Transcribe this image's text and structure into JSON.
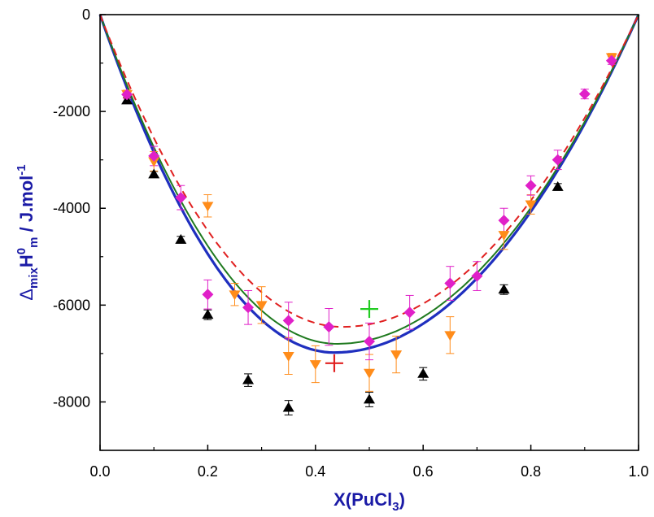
{
  "chart_data": {
    "type": "scatter",
    "xlabel": {
      "main": "X(PuCl",
      "sub": "3",
      "close": ")"
    },
    "ylabel": {
      "delta": "Δ",
      "mix": "mix",
      "h": "H",
      "sup0": "0",
      "subm": "m",
      "unit": " / J.mol",
      "exp": "-1"
    },
    "xlim": [
      0,
      1.0
    ],
    "ylim": [
      -9000,
      0
    ],
    "x_ticks": [
      {
        "value": 0.0,
        "label": "0.0"
      },
      {
        "value": 0.2,
        "label": "0.2"
      },
      {
        "value": 0.4,
        "label": "0.4"
      },
      {
        "value": 0.6,
        "label": "0.6"
      },
      {
        "value": 0.8,
        "label": "0.8"
      },
      {
        "value": 1.0,
        "label": "1.0"
      }
    ],
    "y_ticks": [
      {
        "value": 0,
        "label": "0"
      },
      {
        "value": -2000,
        "label": "-2000"
      },
      {
        "value": -4000,
        "label": "-4000"
      },
      {
        "value": -6000,
        "label": "-6000"
      },
      {
        "value": -8000,
        "label": "-8000"
      }
    ],
    "grid": false,
    "legend": "none",
    "curves": [
      {
        "style": "solid-thick",
        "color": "#1f2fbf",
        "min_x": 0.435,
        "min_y": -6980
      },
      {
        "style": "solid",
        "color": "#1f7a1f",
        "min_x": 0.44,
        "min_y": -6800
      },
      {
        "style": "dashed",
        "color": "#e02020",
        "min_x": 0.45,
        "min_y": -6450
      }
    ],
    "series": [
      {
        "marker": "triangle-up",
        "color": "#000000",
        "points": [
          {
            "x": 0.05,
            "y": -1770,
            "err": 60
          },
          {
            "x": 0.1,
            "y": -3300,
            "err": 60
          },
          {
            "x": 0.15,
            "y": -4650,
            "err": 70
          },
          {
            "x": 0.2,
            "y": -6200,
            "err": 100
          },
          {
            "x": 0.275,
            "y": -7550,
            "err": 130
          },
          {
            "x": 0.35,
            "y": -8120,
            "err": 150
          },
          {
            "x": 0.5,
            "y": -7950,
            "err": 150
          },
          {
            "x": 0.6,
            "y": -7420,
            "err": 130
          },
          {
            "x": 0.75,
            "y": -5680,
            "err": 100
          },
          {
            "x": 0.85,
            "y": -3560,
            "err": 70
          }
        ]
      },
      {
        "marker": "triangle-down",
        "color": "#ff8c1a",
        "points": [
          {
            "x": 0.05,
            "y": -1640,
            "err": 80
          },
          {
            "x": 0.1,
            "y": -3030,
            "err": 200
          },
          {
            "x": 0.2,
            "y": -3950,
            "err": 230
          },
          {
            "x": 0.25,
            "y": -5780,
            "err": 230
          },
          {
            "x": 0.3,
            "y": -6000,
            "err": 380
          },
          {
            "x": 0.35,
            "y": -7050,
            "err": 380
          },
          {
            "x": 0.4,
            "y": -7220,
            "err": 380
          },
          {
            "x": 0.5,
            "y": -7400,
            "err": 380
          },
          {
            "x": 0.55,
            "y": -7020,
            "err": 380
          },
          {
            "x": 0.65,
            "y": -6620,
            "err": 380
          },
          {
            "x": 0.75,
            "y": -4550,
            "err": 300
          },
          {
            "x": 0.8,
            "y": -3920,
            "err": 200
          },
          {
            "x": 0.95,
            "y": -880,
            "err": 80
          }
        ]
      },
      {
        "marker": "diamond",
        "color": "#e020c8",
        "points": [
          {
            "x": 0.05,
            "y": -1650,
            "err": 80
          },
          {
            "x": 0.1,
            "y": -2920,
            "err": 200
          },
          {
            "x": 0.15,
            "y": -3780,
            "err": 250
          },
          {
            "x": 0.2,
            "y": -5780,
            "err": 300
          },
          {
            "x": 0.275,
            "y": -6050,
            "err": 350
          },
          {
            "x": 0.35,
            "y": -6320,
            "err": 380
          },
          {
            "x": 0.425,
            "y": -6450,
            "err": 380
          },
          {
            "x": 0.5,
            "y": -6750,
            "err": 380
          },
          {
            "x": 0.575,
            "y": -6150,
            "err": 350
          },
          {
            "x": 0.65,
            "y": -5550,
            "err": 350
          },
          {
            "x": 0.7,
            "y": -5400,
            "err": 300
          },
          {
            "x": 0.75,
            "y": -4250,
            "err": 250
          },
          {
            "x": 0.8,
            "y": -3530,
            "err": 200
          },
          {
            "x": 0.85,
            "y": -3000,
            "err": 200
          },
          {
            "x": 0.9,
            "y": -1640,
            "err": 100
          },
          {
            "x": 0.95,
            "y": -950,
            "err": 80
          }
        ]
      },
      {
        "marker": "plus",
        "color": "#e02020",
        "points": [
          {
            "x": 0.435,
            "y": -7200
          }
        ]
      },
      {
        "marker": "plus",
        "color": "#22cc22",
        "points": [
          {
            "x": 0.5,
            "y": -6080
          }
        ]
      }
    ]
  }
}
